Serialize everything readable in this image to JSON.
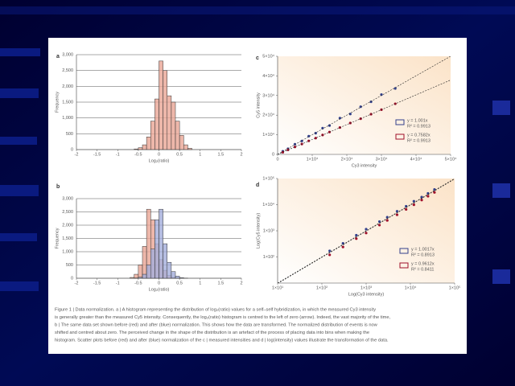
{
  "chart_data": [
    {
      "type": "histogram",
      "panel": "a",
      "xlabel": "Log₂(ratio)",
      "ylabel": "Frequency",
      "bins": [
        -0.6,
        -0.5,
        -0.4,
        -0.3,
        -0.2,
        -0.1,
        0,
        0.1,
        0.2,
        0.3,
        0.4,
        0.5,
        0.6,
        0.7,
        0.8
      ],
      "values": [
        20,
        60,
        150,
        400,
        900,
        1600,
        2800,
        2500,
        1700,
        1500,
        900,
        450,
        150,
        40
      ],
      "color": "#e8a595",
      "xlim": [
        -2,
        2
      ],
      "xticks": [
        -2,
        -1.5,
        -1,
        -0.5,
        0,
        0.5,
        1,
        1.5,
        2
      ],
      "ylim": [
        0,
        3000
      ],
      "yticks": [
        0,
        {
          "value": 500,
          "label": "500"
        },
        {
          "value": 1000,
          "label": "1,000"
        },
        {
          "value": 1500,
          "label": "1,500"
        },
        {
          "value": 2000,
          "label": "2,000"
        },
        {
          "value": 2500,
          "label": "2,500"
        },
        {
          "value": 3000,
          "label": "3,000"
        }
      ],
      "grid": true
    },
    {
      "type": "histogram",
      "panel": "b",
      "xlabel": "Log₂(ratio)",
      "ylabel": "Frequency",
      "bins": [
        -0.7,
        -0.6,
        -0.5,
        -0.4,
        -0.3,
        -0.2,
        -0.1,
        0,
        0.1,
        0.2,
        0.3,
        0.4,
        0.5,
        0.6,
        0.7
      ],
      "series": [
        {
          "color": "#e8a595",
          "values": [
            30,
            150,
            500,
            1200,
            2600,
            2200,
            1300,
            700,
            300,
            100,
            30,
            10,
            0,
            0
          ]
        },
        {
          "color": "#a3add9",
          "values": [
            0,
            10,
            40,
            150,
            500,
            1100,
            2200,
            2600,
            1300,
            600,
            250,
            80,
            20,
            5
          ]
        }
      ],
      "xlim": [
        -2,
        2
      ],
      "xticks": [
        -2,
        -1.5,
        -1,
        -0.5,
        0,
        0.5,
        1,
        1.5,
        2
      ],
      "ylim": [
        0,
        3000
      ],
      "yticks": [
        0,
        {
          "value": 500,
          "label": "500"
        },
        {
          "value": 1000,
          "label": "1,000"
        },
        {
          "value": 1500,
          "label": "1,500"
        },
        {
          "value": 2000,
          "label": "2,000"
        },
        {
          "value": 2500,
          "label": "2,500"
        },
        {
          "value": 3000,
          "label": "3,000"
        }
      ],
      "grid": true
    },
    {
      "type": "scatter",
      "panel": "c",
      "xlabel": "Cy3 intensity",
      "ylabel": "Cy5 intensity",
      "log_scale": false,
      "xlim": [
        0,
        50000
      ],
      "xticks": [
        0,
        {
          "value": 10000,
          "label": "1×10⁴"
        },
        {
          "value": 20000,
          "label": "2×10⁴"
        },
        {
          "value": 30000,
          "label": "3×10⁴"
        },
        {
          "value": 40000,
          "label": "4×10⁴"
        },
        {
          "value": 50000,
          "label": "5×10⁴"
        }
      ],
      "ylim": [
        0,
        50000
      ],
      "yticks": [
        0,
        {
          "value": 10000,
          "label": "1×10⁴"
        },
        {
          "value": 20000,
          "label": "2×10⁴"
        },
        {
          "value": 30000,
          "label": "3×10⁴"
        },
        {
          "value": 40000,
          "label": "4×10⁴"
        },
        {
          "value": 50000,
          "label": "5×10⁴"
        }
      ],
      "series": [
        {
          "name": "y = 1.001x",
          "r2_label": "R² = 0.9913",
          "slope": 1.001,
          "color": "#33418c",
          "x": [
            1500,
            3000,
            5000,
            7000,
            9000,
            11000,
            13000,
            15000,
            18000,
            21000,
            24000,
            27000,
            30000,
            34000
          ],
          "y": [
            1600,
            2900,
            5200,
            6800,
            9300,
            10800,
            13400,
            14700,
            18500,
            20600,
            24300,
            26800,
            30500,
            33600
          ]
        },
        {
          "name": "y = 0.7582x",
          "r2_label": "R² = 0.9913",
          "slope": 0.7582,
          "color": "#a0102a",
          "x": [
            1500,
            3000,
            5000,
            7000,
            9000,
            11000,
            13000,
            15000,
            18000,
            21000,
            24000,
            27000,
            30000,
            34000
          ],
          "y": [
            1100,
            2300,
            3800,
            5300,
            6900,
            8300,
            9900,
            11400,
            13700,
            16000,
            18200,
            20500,
            22800,
            25800
          ]
        }
      ]
    },
    {
      "type": "scatter",
      "panel": "d",
      "xlabel": "Log(Cy3 intensity)",
      "ylabel": "Log(Cy5 intensity)",
      "log_scale": true,
      "xlim": [
        10,
        100000
      ],
      "xticks": [
        {
          "value": 10,
          "label": "1×10¹"
        },
        {
          "value": 100,
          "label": "1×10²"
        },
        {
          "value": 1000,
          "label": "1×10³"
        },
        {
          "value": 10000,
          "label": "1×10⁴"
        },
        {
          "value": 100000,
          "label": "1×10⁵"
        }
      ],
      "ylim": [
        10,
        100000
      ],
      "yticks": [
        {
          "value": 100,
          "label": "1×10²"
        },
        {
          "value": 1000,
          "label": "1×10³"
        },
        {
          "value": 10000,
          "label": "1×10⁴"
        },
        {
          "value": 100000,
          "label": "1×10⁵"
        }
      ],
      "series": [
        {
          "name": "y = 1.0017x",
          "r2_label": "R² = 0.8913",
          "slope": 1.0017,
          "color": "#33418c",
          "x": [
            150,
            300,
            600,
            1000,
            2000,
            3000,
            5000,
            8000,
            12000,
            18000,
            25000,
            35000
          ],
          "y": [
            170,
            330,
            680,
            1150,
            2250,
            3300,
            5600,
            8700,
            13500,
            19500,
            27000,
            38000
          ]
        },
        {
          "name": "y = 0.9612x",
          "r2_label": "R² = 0.8411",
          "slope": 0.9612,
          "color": "#a0102a",
          "x": [
            150,
            300,
            600,
            1000,
            2000,
            3000,
            5000,
            8000,
            12000,
            18000,
            25000,
            35000
          ],
          "y": [
            120,
            240,
            500,
            820,
            1650,
            2500,
            4100,
            6600,
            9900,
            15000,
            21000,
            29500
          ]
        }
      ]
    }
  ],
  "caption": [
    "Figure 1 | Data normalization. a | A histogram representing the distribution of log₂(ratio) values for a self–self hybridization, in which the measured Cy3 intensity",
    "is generally greater than the measured Cy5 intensity. Consequently, the log₂(ratio) histogram is centred to the left of zero (arrow). Indeed, the vast majority of the time,",
    "b | The same data set shown before (red) and after (blue) normalization. This shows how the data are transformed. The normalized distribution of events is now",
    "shifted and centred about zero. The perceived change in the shape of the distribution is an artefact of the process of placing data into bins when making the",
    "histogram. Scatter plots before (red) and after (blue) normalization of the c | measured intensities and d | log(intensity) values illustrate the transformation of the data."
  ]
}
